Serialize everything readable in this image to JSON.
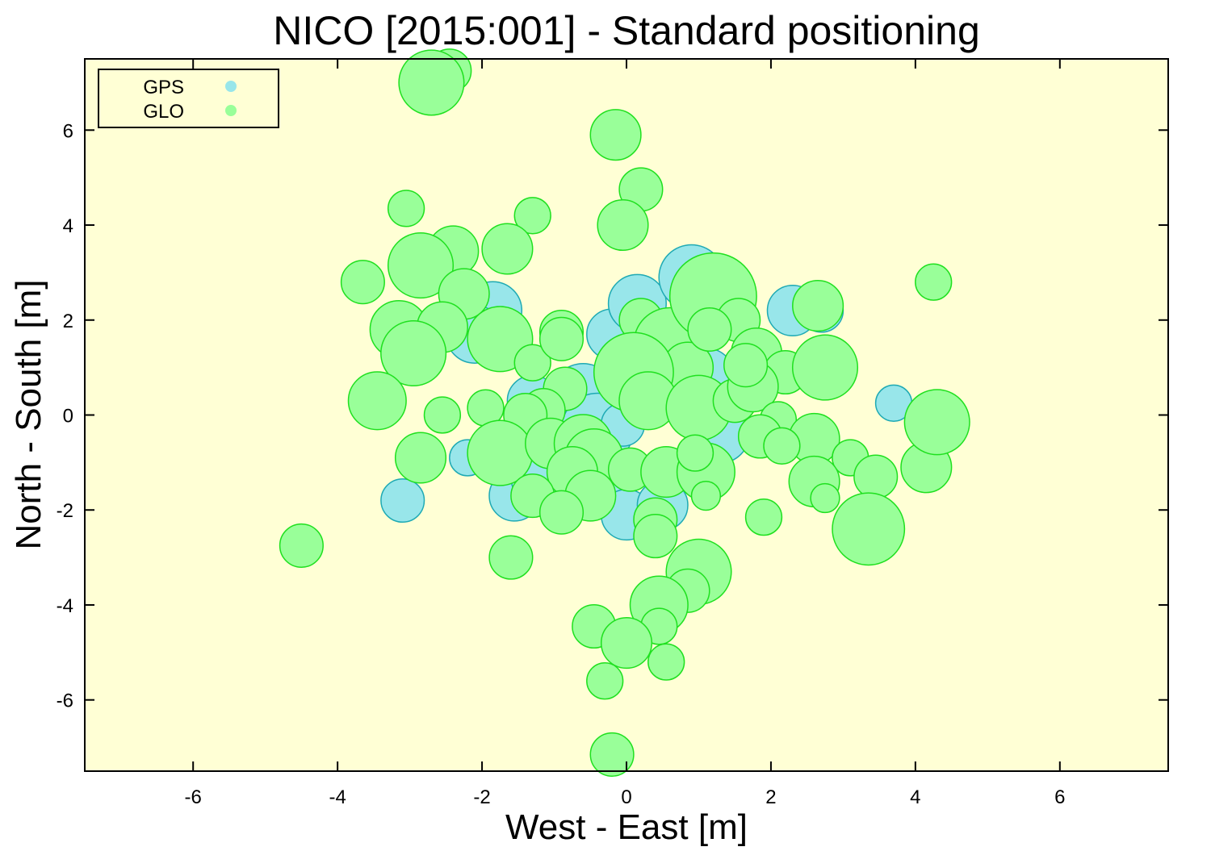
{
  "chart_data": {
    "type": "scatter",
    "title": "NICO [2015:001] - Standard positioning",
    "xlabel": "West - East [m]",
    "ylabel": "North - South [m]",
    "xlim": [
      -7.5,
      7.5
    ],
    "ylim": [
      -7.5,
      7.5
    ],
    "xticks": [
      -6,
      -4,
      -2,
      0,
      2,
      4,
      6
    ],
    "yticks": [
      -6,
      -4,
      -2,
      0,
      2,
      4,
      6
    ],
    "grid": false,
    "background": "#ffffd5",
    "legend_position": "top-left",
    "series": [
      {
        "name": "GPS",
        "fill": "#98e6ea",
        "stroke": "#1eaab4",
        "points": [
          [
            -1.85,
            2.2,
            0.4
          ],
          [
            -2.1,
            1.7,
            0.4
          ],
          [
            -1.3,
            0.3,
            0.35
          ],
          [
            -1.55,
            -1.7,
            0.35
          ],
          [
            -2.2,
            -0.9,
            0.25
          ],
          [
            -3.1,
            -1.8,
            0.3
          ],
          [
            -0.6,
            0.4,
            0.45
          ],
          [
            -0.4,
            -0.3,
            0.5
          ],
          [
            -0.2,
            1.7,
            0.35
          ],
          [
            0.15,
            2.35,
            0.4
          ],
          [
            0.9,
            2.9,
            0.45
          ],
          [
            0.6,
            1.0,
            0.5
          ],
          [
            0.2,
            0.6,
            0.45
          ],
          [
            -0.5,
            -1.5,
            0.45
          ],
          [
            0.0,
            -2.1,
            0.35
          ],
          [
            0.5,
            -1.9,
            0.35
          ],
          [
            -1.2,
            -1.3,
            0.4
          ],
          [
            1.3,
            -0.4,
            0.4
          ],
          [
            2.3,
            2.2,
            0.35
          ],
          [
            2.7,
            2.2,
            0.3
          ],
          [
            3.7,
            0.25,
            0.25
          ],
          [
            -0.05,
            -0.2,
            0.3
          ],
          [
            1.1,
            0.8,
            0.4
          ]
        ]
      },
      {
        "name": "GLO",
        "fill": "#99ff99",
        "stroke": "#1fe01f",
        "points": [
          [
            -2.45,
            7.25,
            0.3
          ],
          [
            -2.7,
            7.0,
            0.45
          ],
          [
            -0.15,
            5.9,
            0.35
          ],
          [
            0.2,
            4.75,
            0.3
          ],
          [
            -0.05,
            4.0,
            0.35
          ],
          [
            -3.05,
            4.35,
            0.25
          ],
          [
            -1.3,
            4.2,
            0.25
          ],
          [
            -2.4,
            3.45,
            0.35
          ],
          [
            -1.65,
            3.5,
            0.35
          ],
          [
            -2.85,
            3.15,
            0.45
          ],
          [
            -3.65,
            2.8,
            0.3
          ],
          [
            -2.25,
            2.55,
            0.35
          ],
          [
            -3.15,
            1.8,
            0.4
          ],
          [
            -2.55,
            1.85,
            0.35
          ],
          [
            -2.95,
            1.3,
            0.45
          ],
          [
            -1.75,
            1.6,
            0.45
          ],
          [
            -1.3,
            1.1,
            0.25
          ],
          [
            -0.9,
            1.75,
            0.3
          ],
          [
            -0.9,
            1.6,
            0.3
          ],
          [
            0.2,
            2.0,
            0.3
          ],
          [
            0.6,
            1.5,
            0.5
          ],
          [
            0.85,
            1.0,
            0.35
          ],
          [
            1.2,
            2.5,
            0.6
          ],
          [
            1.55,
            2.0,
            0.3
          ],
          [
            1.15,
            1.8,
            0.3
          ],
          [
            1.8,
            1.3,
            0.35
          ],
          [
            2.2,
            0.9,
            0.3
          ],
          [
            2.75,
            1.0,
            0.45
          ],
          [
            2.65,
            2.3,
            0.35
          ],
          [
            4.25,
            2.8,
            0.25
          ],
          [
            -3.45,
            0.3,
            0.4
          ],
          [
            -2.55,
            0.0,
            0.25
          ],
          [
            -1.95,
            0.15,
            0.25
          ],
          [
            -0.85,
            0.55,
            0.3
          ],
          [
            -1.15,
            0.1,
            0.3
          ],
          [
            -1.4,
            0.0,
            0.3
          ],
          [
            0.1,
            0.9,
            0.55
          ],
          [
            0.3,
            0.3,
            0.4
          ],
          [
            1.0,
            0.15,
            0.45
          ],
          [
            1.5,
            0.3,
            0.3
          ],
          [
            1.75,
            0.6,
            0.35
          ],
          [
            1.65,
            1.05,
            0.3
          ],
          [
            2.1,
            -0.1,
            0.25
          ],
          [
            2.6,
            -0.5,
            0.35
          ],
          [
            -1.75,
            -0.8,
            0.45
          ],
          [
            -1.05,
            -0.6,
            0.35
          ],
          [
            -0.6,
            -0.6,
            0.4
          ],
          [
            -0.45,
            -0.9,
            0.4
          ],
          [
            -0.75,
            -1.2,
            0.35
          ],
          [
            -0.5,
            -1.7,
            0.35
          ],
          [
            -1.3,
            -1.7,
            0.3
          ],
          [
            -0.9,
            -2.05,
            0.3
          ],
          [
            0.05,
            -1.15,
            0.3
          ],
          [
            0.55,
            -1.2,
            0.35
          ],
          [
            1.1,
            -1.2,
            0.4
          ],
          [
            0.95,
            -0.8,
            0.25
          ],
          [
            1.1,
            -1.7,
            0.2
          ],
          [
            1.85,
            -0.45,
            0.3
          ],
          [
            2.15,
            -0.65,
            0.25
          ],
          [
            3.1,
            -0.9,
            0.25
          ],
          [
            3.45,
            -1.3,
            0.3
          ],
          [
            4.15,
            -1.1,
            0.35
          ],
          [
            4.3,
            -0.15,
            0.45
          ],
          [
            2.6,
            -1.4,
            0.35
          ],
          [
            2.75,
            -1.75,
            0.2
          ],
          [
            3.35,
            -2.4,
            0.5
          ],
          [
            1.9,
            -2.15,
            0.25
          ],
          [
            0.4,
            -2.2,
            0.3
          ],
          [
            0.4,
            -2.55,
            0.3
          ],
          [
            -2.85,
            -0.9,
            0.35
          ],
          [
            -1.6,
            -3.0,
            0.3
          ],
          [
            -4.5,
            -2.75,
            0.3
          ],
          [
            1.0,
            -3.3,
            0.45
          ],
          [
            0.85,
            -3.7,
            0.3
          ],
          [
            0.45,
            -4.0,
            0.4
          ],
          [
            -0.45,
            -4.45,
            0.3
          ],
          [
            0.45,
            -4.45,
            0.25
          ],
          [
            0.0,
            -4.8,
            0.35
          ],
          [
            0.55,
            -5.2,
            0.25
          ],
          [
            -0.3,
            -5.6,
            0.25
          ],
          [
            -0.2,
            -7.15,
            0.3
          ]
        ]
      }
    ]
  }
}
